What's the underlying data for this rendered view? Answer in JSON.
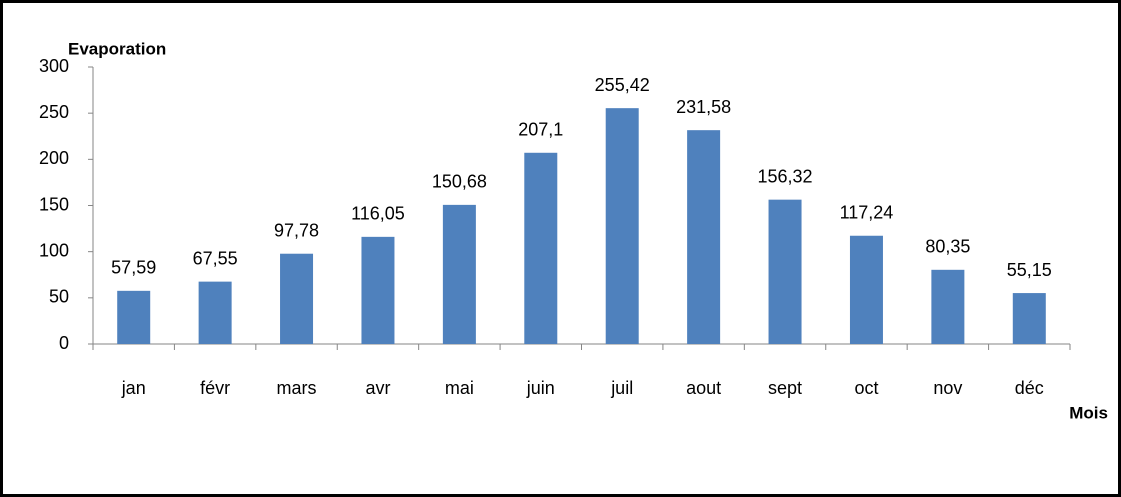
{
  "chart_data": {
    "type": "bar",
    "x_label": "Mois",
    "y_label": "Evaporation",
    "categories": [
      "jan",
      "févr",
      "mars",
      "avr",
      "mai",
      "juin",
      "juil",
      "aout",
      "sept",
      "oct",
      "nov",
      "déc"
    ],
    "values": [
      57.59,
      67.55,
      97.78,
      116.05,
      150.68,
      207.1,
      255.42,
      231.58,
      156.32,
      117.24,
      80.35,
      55.15
    ],
    "value_labels": [
      "57,59",
      "67,55",
      "97,78",
      "116,05",
      "150,68",
      "207,1",
      "255,42",
      "231,58",
      "156,32",
      "117,24",
      "80,35",
      "55,15"
    ],
    "color": "#4f81bd",
    "ylim": [
      0,
      300
    ],
    "yticks": [
      0,
      50,
      100,
      150,
      200,
      250,
      300
    ],
    "grid": false
  }
}
